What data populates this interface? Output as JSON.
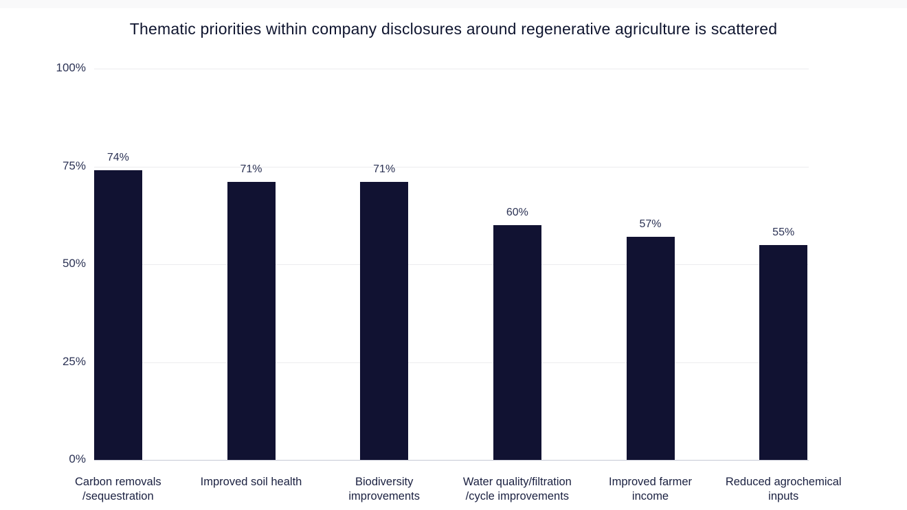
{
  "title": "Thematic priorities within company disclosures around regenerative agriculture is scattered",
  "colors": {
    "bar": "#111232",
    "gridline": "#ececee",
    "axis_line": "#c6c8d5",
    "title_text": "#0f152f",
    "tick_text": "#2b3254",
    "value_text": "#2b3254",
    "category_text": "#1a2040",
    "background": "#ffffff"
  },
  "chart_data": {
    "type": "bar",
    "title": "Thematic priorities within company disclosures around regenerative agriculture is scattered",
    "categories": [
      "Carbon removals\n/sequestration",
      "Improved soil health",
      "Biodiversity\nimprovements",
      "Water quality/filtration\n/cycle improvements",
      "Improved farmer\nincome",
      "Reduced agrochemical\ninputs"
    ],
    "values": [
      74,
      71,
      71,
      60,
      57,
      55
    ],
    "value_labels": [
      "74%",
      "71%",
      "71%",
      "60%",
      "57%",
      "55%"
    ],
    "xlabel": "",
    "ylabel": "",
    "ylim": [
      0,
      100
    ],
    "yticks": [
      {
        "label": "0%",
        "value": 0
      },
      {
        "label": "25%",
        "value": 25
      },
      {
        "label": "50%",
        "value": 50
      },
      {
        "label": "75%",
        "value": 75
      },
      {
        "label": "100%",
        "value": 100
      }
    ],
    "grid": "horizontal",
    "legend": "none"
  }
}
